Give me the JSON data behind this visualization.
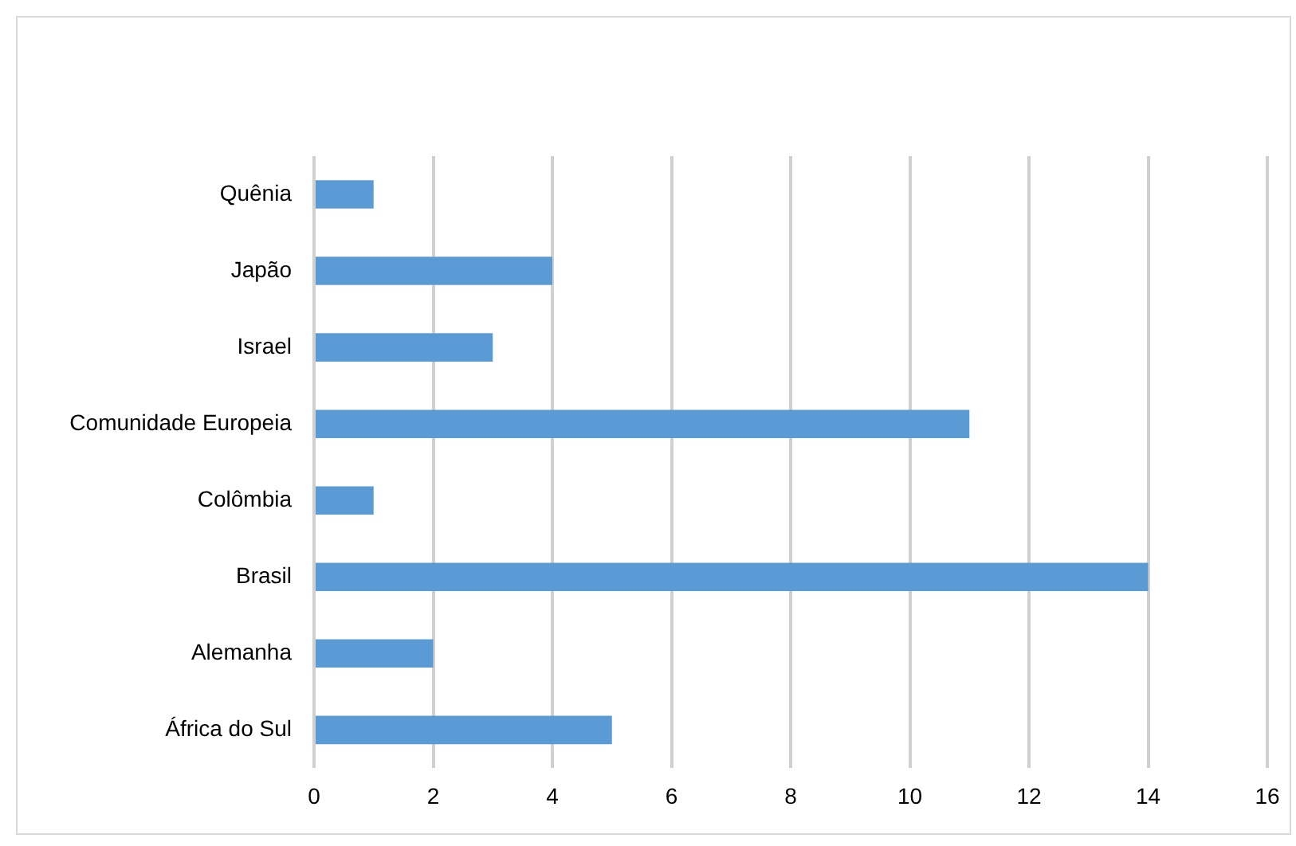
{
  "chart_data": {
    "type": "bar",
    "orientation": "horizontal",
    "categories": [
      "Quênia",
      "Japão",
      "Israel",
      "Comunidade Europeia",
      "Colômbia",
      "Brasil",
      "Alemanha",
      "África do Sul"
    ],
    "values": [
      1,
      4,
      3,
      11,
      1,
      14,
      2,
      5
    ],
    "color": "#5b9bd5",
    "xlim": [
      0,
      16
    ],
    "xticks": [
      0,
      2,
      4,
      6,
      8,
      10,
      12,
      14,
      16
    ],
    "grid": "x",
    "legend": false
  }
}
